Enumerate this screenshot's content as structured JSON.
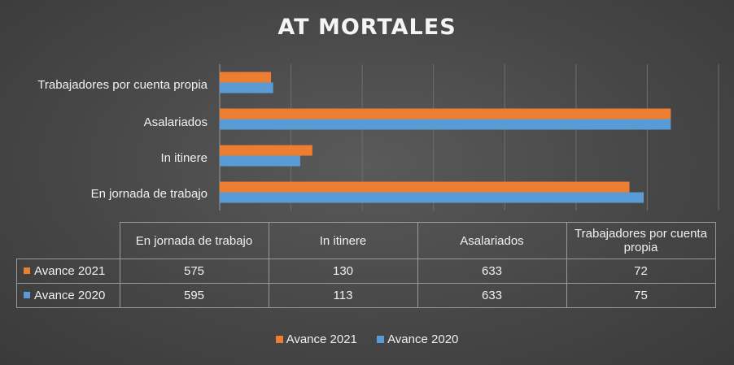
{
  "chart_data": {
    "type": "bar",
    "orientation": "horizontal",
    "title": "AT MORTALES",
    "categories": [
      "En jornada de trabajo",
      "In itinere",
      "Asalariados",
      "Trabajadores por cuenta propia"
    ],
    "axis_category_labels": [
      "Trabajadores por cuenta propia",
      "Asalariados",
      "In itinere",
      "En jornada de trabajo"
    ],
    "table_headers": [
      "En jornada de trabajo",
      "In itinere",
      "Asalariados",
      "Trabajadores por cuenta propia"
    ],
    "series": [
      {
        "name": "Avance 2021",
        "color": "#ed7d31",
        "values": [
          575,
          130,
          633,
          72
        ]
      },
      {
        "name": "Avance 2020",
        "color": "#5b9bd5",
        "values": [
          595,
          113,
          633,
          75
        ]
      }
    ],
    "xlim": [
      0,
      700
    ],
    "grid": true,
    "legend_position": "bottom",
    "data_table": true
  }
}
